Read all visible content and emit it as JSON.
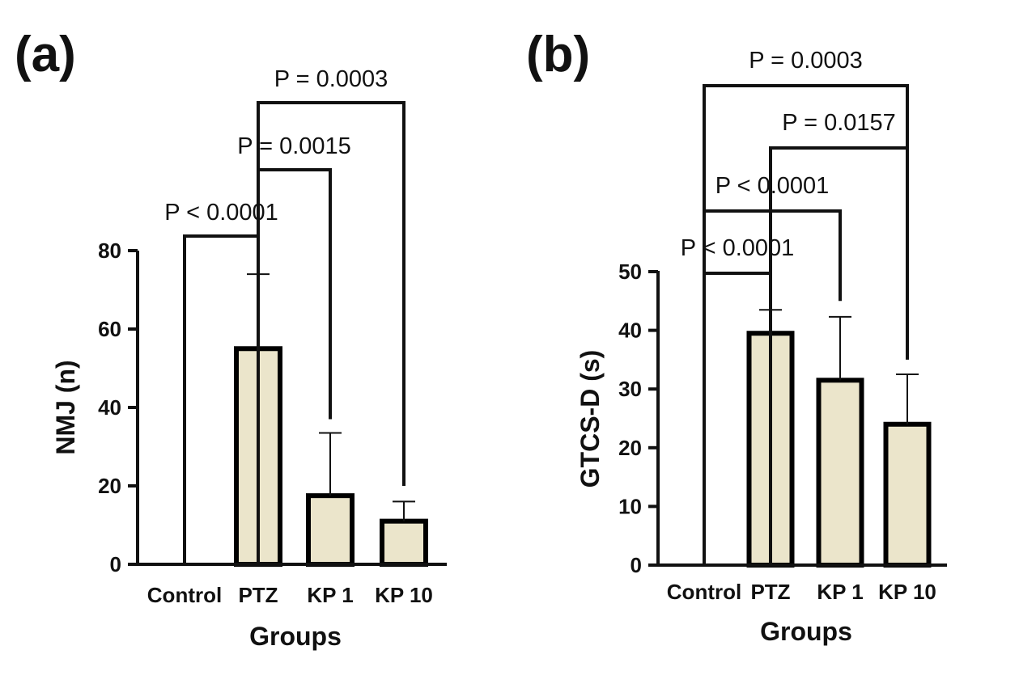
{
  "colors": {
    "bar_fill": "#ebe5cb",
    "bar_stroke": "#000000",
    "ink": "#111111"
  },
  "chart_data": [
    {
      "type": "bar",
      "panel": "(a)",
      "title": "",
      "xlabel": "Groups",
      "ylabel": "NMJ (n)",
      "categories": [
        "Control",
        "PTZ",
        "KP 1",
        "KP 10"
      ],
      "values": [
        0,
        55,
        17.5,
        11
      ],
      "error_upper": [
        0,
        74,
        33.5,
        16
      ],
      "ylim": [
        0,
        80
      ],
      "yticks": [
        0,
        20,
        40,
        60,
        80
      ],
      "grid": false,
      "legend": "none",
      "comparisons": [
        {
          "from": 0,
          "to": 1,
          "label": "P < 0.0001",
          "level": 1,
          "from_top": 0,
          "to_top": 77
        },
        {
          "from": 1,
          "to": 2,
          "label": "P = 0.0015",
          "level": 2,
          "from_top": 0,
          "to_top": 37
        },
        {
          "from": 1,
          "to": 3,
          "label": "P = 0.0003",
          "level": 3,
          "from_top": 0,
          "to_top": 20
        }
      ]
    },
    {
      "type": "bar",
      "panel": "(b)",
      "title": "",
      "xlabel": "Groups",
      "ylabel": "GTCS-D (s)",
      "categories": [
        "Control",
        "PTZ",
        "KP 1",
        "KP 10"
      ],
      "values": [
        0,
        39.5,
        31.5,
        24
      ],
      "error_upper": [
        0,
        43.5,
        42.3,
        32.5
      ],
      "ylim": [
        0,
        50
      ],
      "yticks": [
        0,
        10,
        20,
        30,
        40,
        50
      ],
      "grid": false,
      "legend": "none",
      "comparisons": [
        {
          "from": 0,
          "to": 1,
          "label": "P < 0.0001",
          "level": 1,
          "from_top": 0,
          "to_top": 50
        },
        {
          "from": 0,
          "to": 2,
          "label": "P < 0.0001",
          "level": 2,
          "from_top": 0,
          "to_top": 45
        },
        {
          "from": 1,
          "to": 3,
          "label": "P = 0.0157",
          "level": 3,
          "from_top": 0,
          "to_top": 35
        },
        {
          "from": 0,
          "to": 3,
          "label": "P = 0.0003",
          "level": 4,
          "from_top": 0,
          "to_top": 60
        }
      ]
    }
  ]
}
